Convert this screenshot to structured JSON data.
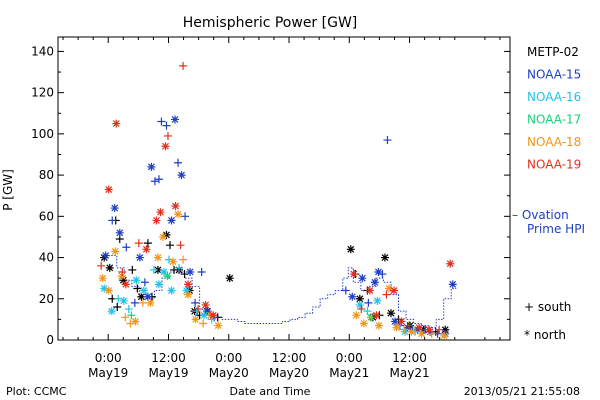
{
  "chart_data": {
    "type": "scatter",
    "title": "Hemispheric Power [GW]",
    "ylabel": "P [GW]",
    "xlabel": "Date and Time",
    "ylim": [
      0,
      147
    ],
    "xlim_hours": [
      -10,
      80
    ],
    "y_ticks": [
      0,
      20,
      40,
      60,
      80,
      100,
      120,
      140
    ],
    "x_ticks": [
      {
        "x": 0,
        "top": "0:00",
        "bottom": "May19"
      },
      {
        "x": 12,
        "top": "12:00",
        "bottom": "May19"
      },
      {
        "x": 24,
        "top": "0:00",
        "bottom": "May20"
      },
      {
        "x": 36,
        "top": "12:00",
        "bottom": "May20"
      },
      {
        "x": 48,
        "top": "0:00",
        "bottom": "May21"
      },
      {
        "x": 60,
        "top": "12:00",
        "bottom": "May21"
      }
    ],
    "legend": {
      "position": "right",
      "entries": [
        {
          "name": "METP-02",
          "color": "#000000"
        },
        {
          "name": "NOAA-15",
          "color": "#1f3fc8"
        },
        {
          "name": "NOAA-16",
          "color": "#22c3e8"
        },
        {
          "name": "NOAA-17",
          "color": "#19d07a"
        },
        {
          "name": "NOAA-18",
          "color": "#f0961e"
        },
        {
          "name": "NOAA-19",
          "color": "#e0301e"
        }
      ]
    },
    "ovation_label": [
      "– Ovation",
      "Prime HPI"
    ],
    "marker_legend": [
      {
        "symbol": "+",
        "label": "south"
      },
      {
        "symbol": "*",
        "label": "north"
      }
    ],
    "ovation_color": "#1f3fc8",
    "ovation": [
      {
        "x": -1.2,
        "y": 41
      },
      {
        "x": 0.2,
        "y": 41
      },
      {
        "x": 1.7,
        "y": 35
      },
      {
        "x": 3.2,
        "y": 29
      },
      {
        "x": 4.7,
        "y": 26
      },
      {
        "x": 6.2,
        "y": 22
      },
      {
        "x": 7.7,
        "y": 20
      },
      {
        "x": 9.2,
        "y": 24
      },
      {
        "x": 10.7,
        "y": 30
      },
      {
        "x": 12.2,
        "y": 33
      },
      {
        "x": 13.7,
        "y": 33
      },
      {
        "x": 15.2,
        "y": 30
      },
      {
        "x": 16.7,
        "y": 26
      },
      {
        "x": 18.2,
        "y": 15
      },
      {
        "x": 19.7,
        "y": 12
      },
      {
        "x": 21.2,
        "y": 11
      },
      {
        "x": 22.7,
        "y": 10
      },
      {
        "x": 24.2,
        "y": 10
      },
      {
        "x": 25.7,
        "y": 9
      },
      {
        "x": 27.2,
        "y": 8
      },
      {
        "x": 28.7,
        "y": 8
      },
      {
        "x": 30.2,
        "y": 8
      },
      {
        "x": 31.7,
        "y": 8
      },
      {
        "x": 33.2,
        "y": 8
      },
      {
        "x": 34.7,
        "y": 9
      },
      {
        "x": 36.2,
        "y": 10
      },
      {
        "x": 37.7,
        "y": 11
      },
      {
        "x": 39.2,
        "y": 13
      },
      {
        "x": 40.7,
        "y": 16
      },
      {
        "x": 42.2,
        "y": 20
      },
      {
        "x": 43.7,
        "y": 22
      },
      {
        "x": 45.2,
        "y": 24
      },
      {
        "x": 46.7,
        "y": 30
      },
      {
        "x": 47.8,
        "y": 35
      },
      {
        "x": 48.8,
        "y": 28
      },
      {
        "x": 50.3,
        "y": 24
      },
      {
        "x": 51.8,
        "y": 26
      },
      {
        "x": 53.3,
        "y": 30
      },
      {
        "x": 54.8,
        "y": 28
      },
      {
        "x": 56.3,
        "y": 22
      },
      {
        "x": 57.8,
        "y": 14
      },
      {
        "x": 59.3,
        "y": 10
      },
      {
        "x": 60.8,
        "y": 8
      },
      {
        "x": 62.3,
        "y": 7
      },
      {
        "x": 63.8,
        "y": 6
      },
      {
        "x": 65.3,
        "y": 10
      },
      {
        "x": 66.8,
        "y": 20
      },
      {
        "x": 68.3,
        "y": 25
      },
      {
        "x": 69.3,
        "y": 25
      }
    ],
    "series": [
      {
        "name": "METP-02",
        "points": [
          {
            "x": -0.8,
            "y": 40,
            "m": "*"
          },
          {
            "x": 0.3,
            "y": 35,
            "m": "*"
          },
          {
            "x": 1.5,
            "y": 58,
            "m": "+"
          },
          {
            "x": 2.3,
            "y": 49,
            "m": "+"
          },
          {
            "x": 0.8,
            "y": 20,
            "m": "+"
          },
          {
            "x": 1.8,
            "y": 16,
            "m": "+"
          },
          {
            "x": 3.0,
            "y": 29,
            "m": "*"
          },
          {
            "x": 4.8,
            "y": 34,
            "m": "+"
          },
          {
            "x": 5.8,
            "y": 25,
            "m": "+"
          },
          {
            "x": 6.6,
            "y": 21,
            "m": "*"
          },
          {
            "x": 7.9,
            "y": 47,
            "m": "+"
          },
          {
            "x": 8.7,
            "y": 21,
            "m": "+"
          },
          {
            "x": 9.9,
            "y": 34,
            "m": "*"
          },
          {
            "x": 11.6,
            "y": 51,
            "m": "*"
          },
          {
            "x": 12.3,
            "y": 46,
            "m": "+"
          },
          {
            "x": 13.1,
            "y": 34,
            "m": "+"
          },
          {
            "x": 14.1,
            "y": 34,
            "m": "*"
          },
          {
            "x": 15.2,
            "y": 32,
            "m": "+"
          },
          {
            "x": 16.2,
            "y": 24,
            "m": "*"
          },
          {
            "x": 17.2,
            "y": 14,
            "m": "*"
          },
          {
            "x": 18.2,
            "y": 12,
            "m": "+"
          },
          {
            "x": 19.7,
            "y": 14,
            "m": "*"
          },
          {
            "x": 21.8,
            "y": 11,
            "m": "+"
          },
          {
            "x": 24.2,
            "y": 30,
            "m": "*"
          },
          {
            "x": 48.3,
            "y": 44,
            "m": "*"
          },
          {
            "x": 49.2,
            "y": 32,
            "m": "+"
          },
          {
            "x": 50.1,
            "y": 20,
            "m": "*"
          },
          {
            "x": 51.6,
            "y": 24,
            "m": "+"
          },
          {
            "x": 52.7,
            "y": 11,
            "m": "*"
          },
          {
            "x": 54.0,
            "y": 12,
            "m": "+"
          },
          {
            "x": 55.1,
            "y": 40,
            "m": "*"
          },
          {
            "x": 56.3,
            "y": 13,
            "m": "*"
          },
          {
            "x": 57.8,
            "y": 10,
            "m": "+"
          },
          {
            "x": 60.1,
            "y": 7,
            "m": "*"
          },
          {
            "x": 62.8,
            "y": 5,
            "m": "*"
          },
          {
            "x": 65.2,
            "y": 4,
            "m": "+"
          },
          {
            "x": 67.1,
            "y": 5,
            "m": "*"
          }
        ]
      },
      {
        "name": "NOAA-15",
        "points": [
          {
            "x": -0.5,
            "y": 41,
            "m": "*"
          },
          {
            "x": 0.8,
            "y": 58,
            "m": "+"
          },
          {
            "x": 1.3,
            "y": 64,
            "m": "*"
          },
          {
            "x": 2.3,
            "y": 52,
            "m": "*"
          },
          {
            "x": 3.6,
            "y": 45,
            "m": "+"
          },
          {
            "x": 5.3,
            "y": 18,
            "m": "+"
          },
          {
            "x": 6.3,
            "y": 40,
            "m": "*"
          },
          {
            "x": 7.3,
            "y": 28,
            "m": "+"
          },
          {
            "x": 7.9,
            "y": 21,
            "m": "*"
          },
          {
            "x": 8.6,
            "y": 84,
            "m": "*"
          },
          {
            "x": 9.3,
            "y": 77,
            "m": "+"
          },
          {
            "x": 10.1,
            "y": 78,
            "m": "+"
          },
          {
            "x": 10.6,
            "y": 106,
            "m": "+"
          },
          {
            "x": 11.6,
            "y": 104,
            "m": "+"
          },
          {
            "x": 12.6,
            "y": 58,
            "m": "*"
          },
          {
            "x": 13.3,
            "y": 107,
            "m": "*"
          },
          {
            "x": 13.9,
            "y": 86,
            "m": "+"
          },
          {
            "x": 14.6,
            "y": 80,
            "m": "*"
          },
          {
            "x": 15.3,
            "y": 60,
            "m": "+"
          },
          {
            "x": 16.3,
            "y": 33,
            "m": "*"
          },
          {
            "x": 17.3,
            "y": 18,
            "m": "+"
          },
          {
            "x": 18.6,
            "y": 33,
            "m": "+"
          },
          {
            "x": 19.8,
            "y": 14,
            "m": "*"
          },
          {
            "x": 21.1,
            "y": 11,
            "m": "+"
          },
          {
            "x": 47.3,
            "y": 24,
            "m": "+"
          },
          {
            "x": 48.6,
            "y": 21,
            "m": "*"
          },
          {
            "x": 50.6,
            "y": 30,
            "m": "*"
          },
          {
            "x": 51.8,
            "y": 18,
            "m": "+"
          },
          {
            "x": 53.1,
            "y": 28,
            "m": "*"
          },
          {
            "x": 53.8,
            "y": 33,
            "m": "*"
          },
          {
            "x": 54.6,
            "y": 32,
            "m": "+"
          },
          {
            "x": 55.6,
            "y": 97,
            "m": "+"
          },
          {
            "x": 57.1,
            "y": 9,
            "m": "*"
          },
          {
            "x": 58.1,
            "y": 7,
            "m": "+"
          },
          {
            "x": 59.6,
            "y": 6,
            "m": "*"
          },
          {
            "x": 60.6,
            "y": 5,
            "m": "+"
          },
          {
            "x": 61.6,
            "y": 5,
            "m": "*"
          },
          {
            "x": 63.1,
            "y": 5,
            "m": "+"
          },
          {
            "x": 64.1,
            "y": 4,
            "m": "*"
          },
          {
            "x": 65.6,
            "y": 3,
            "m": "+"
          },
          {
            "x": 67.1,
            "y": 3,
            "m": "*"
          },
          {
            "x": 68.6,
            "y": 27,
            "m": "*"
          }
        ]
      },
      {
        "name": "NOAA-16",
        "points": [
          {
            "x": -0.8,
            "y": 25,
            "m": "*"
          },
          {
            "x": 0.7,
            "y": 14,
            "m": "*"
          },
          {
            "x": 2.0,
            "y": 20,
            "m": "+"
          },
          {
            "x": 3.1,
            "y": 19,
            "m": "*"
          },
          {
            "x": 4.1,
            "y": 15,
            "m": "+"
          },
          {
            "x": 5.6,
            "y": 29,
            "m": "*"
          },
          {
            "x": 7.1,
            "y": 24,
            "m": "*"
          },
          {
            "x": 9.1,
            "y": 34,
            "m": "+"
          },
          {
            "x": 10.1,
            "y": 27,
            "m": "*"
          },
          {
            "x": 11.1,
            "y": 33,
            "m": "*"
          },
          {
            "x": 12.1,
            "y": 39,
            "m": "+"
          },
          {
            "x": 12.6,
            "y": 24,
            "m": "*"
          },
          {
            "x": 14.1,
            "y": 35,
            "m": "+"
          },
          {
            "x": 15.6,
            "y": 24,
            "m": "*"
          },
          {
            "x": 17.6,
            "y": 14,
            "m": "+"
          },
          {
            "x": 19.1,
            "y": 12,
            "m": "*"
          },
          {
            "x": 20.6,
            "y": 10,
            "m": "+"
          },
          {
            "x": 50.1,
            "y": 17,
            "m": "*"
          },
          {
            "x": 51.6,
            "y": 14,
            "m": "+"
          },
          {
            "x": 53.6,
            "y": 19,
            "m": "*"
          },
          {
            "x": 57.6,
            "y": 7,
            "m": "+"
          },
          {
            "x": 59.1,
            "y": 4,
            "m": "*"
          },
          {
            "x": 61.1,
            "y": 4,
            "m": "+"
          }
        ]
      },
      {
        "name": "NOAA-17",
        "points": [
          {
            "x": 4.6,
            "y": 12,
            "m": "+"
          },
          {
            "x": 11.8,
            "y": 31,
            "m": "*"
          },
          {
            "x": 52.3,
            "y": 11,
            "m": "*"
          }
        ]
      },
      {
        "name": "NOAA-18",
        "points": [
          {
            "x": -1.1,
            "y": 30,
            "m": "*"
          },
          {
            "x": 0.1,
            "y": 24,
            "m": "*"
          },
          {
            "x": 1.4,
            "y": 43,
            "m": "*"
          },
          {
            "x": 2.7,
            "y": 31,
            "m": "*"
          },
          {
            "x": 3.4,
            "y": 11,
            "m": "+"
          },
          {
            "x": 4.4,
            "y": 8,
            "m": "+"
          },
          {
            "x": 5.4,
            "y": 9,
            "m": "*"
          },
          {
            "x": 6.9,
            "y": 18,
            "m": "+"
          },
          {
            "x": 8.4,
            "y": 18,
            "m": "*"
          },
          {
            "x": 9.9,
            "y": 40,
            "m": "*"
          },
          {
            "x": 10.9,
            "y": 50,
            "m": "*"
          },
          {
            "x": 12.9,
            "y": 38,
            "m": "*"
          },
          {
            "x": 13.9,
            "y": 61,
            "m": "*"
          },
          {
            "x": 14.9,
            "y": 39,
            "m": "+"
          },
          {
            "x": 15.9,
            "y": 22,
            "m": "*"
          },
          {
            "x": 17.4,
            "y": 10,
            "m": "*"
          },
          {
            "x": 18.9,
            "y": 8,
            "m": "+"
          },
          {
            "x": 20.4,
            "y": 12,
            "m": "*"
          },
          {
            "x": 21.9,
            "y": 7,
            "m": "*"
          },
          {
            "x": 49.4,
            "y": 12,
            "m": "*"
          },
          {
            "x": 50.9,
            "y": 8,
            "m": "*"
          },
          {
            "x": 52.4,
            "y": 11,
            "m": "+"
          },
          {
            "x": 53.9,
            "y": 7,
            "m": "*"
          },
          {
            "x": 55.9,
            "y": 25,
            "m": "*"
          },
          {
            "x": 57.4,
            "y": 6,
            "m": "*"
          },
          {
            "x": 58.9,
            "y": 5,
            "m": "+"
          },
          {
            "x": 60.4,
            "y": 4,
            "m": "*"
          },
          {
            "x": 62.4,
            "y": 3,
            "m": "*"
          },
          {
            "x": 64.4,
            "y": 3,
            "m": "+"
          },
          {
            "x": 66.9,
            "y": 2,
            "m": "*"
          }
        ]
      },
      {
        "name": "NOAA-19",
        "points": [
          {
            "x": -1.4,
            "y": 36,
            "m": "+"
          },
          {
            "x": 0.1,
            "y": 73,
            "m": "*"
          },
          {
            "x": 1.6,
            "y": 105,
            "m": "*"
          },
          {
            "x": 2.8,
            "y": 33,
            "m": "+"
          },
          {
            "x": 3.5,
            "y": 27,
            "m": "*"
          },
          {
            "x": 6.1,
            "y": 47,
            "m": "+"
          },
          {
            "x": 7.6,
            "y": 44,
            "m": "*"
          },
          {
            "x": 9.6,
            "y": 58,
            "m": "*"
          },
          {
            "x": 10.4,
            "y": 62,
            "m": "*"
          },
          {
            "x": 11.4,
            "y": 94,
            "m": "*"
          },
          {
            "x": 11.9,
            "y": 99,
            "m": "+"
          },
          {
            "x": 13.4,
            "y": 65,
            "m": "*"
          },
          {
            "x": 14.4,
            "y": 46,
            "m": "+"
          },
          {
            "x": 14.9,
            "y": 133,
            "m": "+"
          },
          {
            "x": 15.9,
            "y": 27,
            "m": "*"
          },
          {
            "x": 17.9,
            "y": 15,
            "m": "+"
          },
          {
            "x": 19.4,
            "y": 17,
            "m": "*"
          },
          {
            "x": 20.9,
            "y": 12,
            "m": "*"
          },
          {
            "x": 48.9,
            "y": 32,
            "m": "*"
          },
          {
            "x": 50.4,
            "y": 15,
            "m": "+"
          },
          {
            "x": 52.1,
            "y": 24,
            "m": "*"
          },
          {
            "x": 53.4,
            "y": 12,
            "m": "*"
          },
          {
            "x": 55.4,
            "y": 22,
            "m": "+"
          },
          {
            "x": 56.9,
            "y": 24,
            "m": "*"
          },
          {
            "x": 58.4,
            "y": 9,
            "m": "*"
          },
          {
            "x": 59.9,
            "y": 7,
            "m": "+"
          },
          {
            "x": 61.9,
            "y": 6,
            "m": "*"
          },
          {
            "x": 63.9,
            "y": 5,
            "m": "*"
          },
          {
            "x": 65.9,
            "y": 5,
            "m": "+"
          },
          {
            "x": 68.1,
            "y": 37,
            "m": "*"
          }
        ]
      }
    ]
  },
  "footer": {
    "plot_credit": "Plot: CCMC",
    "timestamp": "2013/05/21 21:55:08"
  }
}
